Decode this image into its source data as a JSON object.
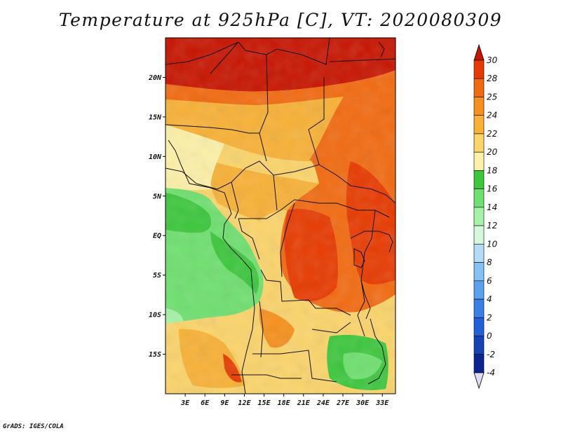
{
  "title": "Temperature at 925hPa [C], VT: 2020080309",
  "credit": "GrADS: IGES/COLA",
  "map": {
    "lat_labels": [
      "20N",
      "15N",
      "10N",
      "5N",
      "EQ",
      "5S",
      "10S",
      "15S"
    ],
    "lat_values": [
      20,
      15,
      10,
      5,
      0,
      -5,
      -10,
      -15
    ],
    "lon_labels": [
      "3E",
      "6E",
      "9E",
      "12E",
      "15E",
      "18E",
      "21E",
      "24E",
      "27E",
      "30E",
      "33E"
    ],
    "lon_values": [
      3,
      6,
      9,
      12,
      15,
      18,
      21,
      24,
      27,
      30,
      33
    ],
    "lon_range": [
      0,
      35
    ],
    "lat_range": [
      -20,
      25
    ]
  },
  "colorbar": {
    "labels": [
      "30",
      "28",
      "25",
      "24",
      "22",
      "20",
      "18",
      "16",
      "14",
      "12",
      "10",
      "8",
      "6",
      "4",
      "2",
      "0",
      "-2",
      "-4"
    ],
    "colors": [
      "#c81400",
      "#e83a00",
      "#f26a10",
      "#f6901c",
      "#f8b135",
      "#fbd46a",
      "#fdf0a8",
      "#3cc73c",
      "#6fe06f",
      "#a6f2a6",
      "#d4f8dc",
      "#b3dcf7",
      "#84c2f5",
      "#5aa2ee",
      "#3a7fe6",
      "#2060d8",
      "#1444b4",
      "#0a2490",
      "#061060"
    ],
    "top_color": "#c81400",
    "bottom_color": "#ddddf5"
  }
}
